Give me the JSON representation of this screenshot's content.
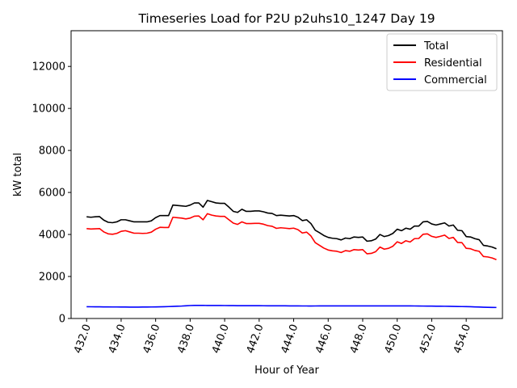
{
  "chart_data": {
    "type": "line",
    "title": "Timeseries Load for P2U p2uhs10_1247  Day 19",
    "xlabel": "Hour of Year",
    "ylabel": "kW total",
    "xlim": [
      431.1,
      456.1
    ],
    "ylim": [
      0,
      13700
    ],
    "xticks": [
      432,
      434,
      436,
      438,
      440,
      442,
      444,
      446,
      448,
      450,
      452,
      454
    ],
    "xtick_labels": [
      "432.0",
      "434.0",
      "436.0",
      "438.0",
      "440.0",
      "442.0",
      "444.0",
      "446.0",
      "448.0",
      "450.0",
      "452.0",
      "454.0"
    ],
    "yticks": [
      0,
      2000,
      4000,
      6000,
      8000,
      10000,
      12000
    ],
    "ytick_labels": [
      "0",
      "2000",
      "4000",
      "6000",
      "8000",
      "10000",
      "12000"
    ],
    "grid": false,
    "legend_position": "upper right",
    "x": [
      432.0,
      432.25,
      432.5,
      432.75,
      433.0,
      433.25,
      433.5,
      433.75,
      434.0,
      434.25,
      434.5,
      434.75,
      435.0,
      435.25,
      435.5,
      435.75,
      436.0,
      436.25,
      436.5,
      436.75,
      437.0,
      437.25,
      437.5,
      437.75,
      438.0,
      438.25,
      438.5,
      438.75,
      439.0,
      439.25,
      439.5,
      439.75,
      440.0,
      440.25,
      440.5,
      440.75,
      441.0,
      441.25,
      441.5,
      441.75,
      442.0,
      442.25,
      442.5,
      442.75,
      443.0,
      443.25,
      443.5,
      443.75,
      444.0,
      444.25,
      444.5,
      444.75,
      445.0,
      445.25,
      445.5,
      445.75,
      446.0,
      446.25,
      446.5,
      446.75,
      447.0,
      447.25,
      447.5,
      447.75,
      448.0,
      448.25,
      448.5,
      448.75,
      449.0,
      449.25,
      449.5,
      449.75,
      450.0,
      450.25,
      450.5,
      450.75,
      451.0,
      451.25,
      451.5,
      451.75,
      452.0,
      452.25,
      452.5,
      452.75,
      453.0,
      453.25,
      453.5,
      453.75,
      454.0,
      454.25,
      454.5,
      454.75,
      455.0,
      455.25,
      455.5,
      455.75
    ],
    "series": [
      {
        "name": "Total",
        "color": "#000000",
        "values": [
          4840,
          4820,
          4840,
          4850,
          4680,
          4580,
          4560,
          4600,
          4700,
          4700,
          4650,
          4600,
          4600,
          4600,
          4600,
          4650,
          4800,
          4900,
          4900,
          4900,
          5400,
          5380,
          5360,
          5340,
          5400,
          5500,
          5500,
          5300,
          5620,
          5560,
          5500,
          5480,
          5480,
          5300,
          5100,
          5050,
          5200,
          5100,
          5100,
          5120,
          5120,
          5080,
          5020,
          5000,
          4900,
          4920,
          4900,
          4880,
          4900,
          4820,
          4660,
          4700,
          4520,
          4200,
          4080,
          3950,
          3860,
          3820,
          3800,
          3740,
          3830,
          3800,
          3880,
          3860,
          3880,
          3680,
          3700,
          3780,
          4000,
          3900,
          3950,
          4050,
          4250,
          4180,
          4300,
          4250,
          4400,
          4400,
          4600,
          4620,
          4500,
          4450,
          4500,
          4550,
          4400,
          4450,
          4200,
          4180,
          3900,
          3880,
          3800,
          3750,
          3480,
          3450,
          3400,
          3320
        ]
      },
      {
        "name": "Residential",
        "color": "#ff0000",
        "values": [
          4280,
          4260,
          4270,
          4280,
          4120,
          4030,
          4010,
          4050,
          4150,
          4180,
          4120,
          4060,
          4060,
          4050,
          4060,
          4110,
          4250,
          4340,
          4330,
          4330,
          4820,
          4800,
          4780,
          4740,
          4780,
          4870,
          4880,
          4700,
          4990,
          4920,
          4880,
          4860,
          4860,
          4700,
          4540,
          4480,
          4600,
          4520,
          4520,
          4530,
          4530,
          4490,
          4420,
          4390,
          4290,
          4320,
          4300,
          4280,
          4300,
          4230,
          4070,
          4110,
          3930,
          3610,
          3480,
          3350,
          3260,
          3220,
          3200,
          3140,
          3230,
          3200,
          3280,
          3260,
          3280,
          3080,
          3100,
          3180,
          3400,
          3300,
          3340,
          3440,
          3650,
          3570,
          3700,
          3640,
          3800,
          3810,
          4010,
          4030,
          3910,
          3860,
          3910,
          3970,
          3810,
          3860,
          3620,
          3610,
          3340,
          3320,
          3240,
          3200,
          2950,
          2930,
          2880,
          2800
        ]
      },
      {
        "name": "Commercial",
        "color": "#0000ff",
        "values": [
          560,
          558,
          556,
          554,
          552,
          550,
          548,
          548,
          546,
          544,
          543,
          542,
          542,
          544,
          546,
          548,
          552,
          556,
          562,
          568,
          576,
          584,
          592,
          604,
          616,
          624,
          624,
          622,
          620,
          620,
          620,
          618,
          616,
          614,
          612,
          610,
          608,
          608,
          608,
          608,
          608,
          606,
          604,
          604,
          604,
          604,
          602,
          600,
          598,
          598,
          596,
          596,
          594,
          596,
          598,
          600,
          600,
          600,
          600,
          600,
          600,
          600,
          600,
          600,
          600,
          600,
          600,
          600,
          600,
          600,
          600,
          600,
          600,
          600,
          600,
          598,
          596,
          594,
          592,
          590,
          588,
          586,
          584,
          582,
          580,
          576,
          572,
          568,
          564,
          560,
          552,
          544,
          536,
          530,
          526,
          524
        ]
      }
    ]
  }
}
